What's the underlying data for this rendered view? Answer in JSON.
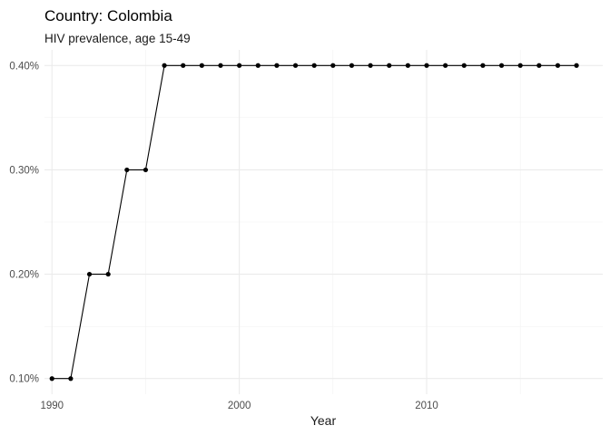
{
  "chart_data": {
    "type": "line",
    "title": "Country: Colombia",
    "subtitle": "HIV prevalence, age 15-49",
    "xlabel": "Year",
    "ylabel": "",
    "x": [
      1990,
      1991,
      1992,
      1993,
      1994,
      1995,
      1996,
      1997,
      1998,
      1999,
      2000,
      2001,
      2002,
      2003,
      2004,
      2005,
      2006,
      2007,
      2008,
      2009,
      2010,
      2011,
      2012,
      2013,
      2014,
      2015,
      2016,
      2017,
      2018
    ],
    "series": [
      {
        "values": [
          0.1,
          0.1,
          0.2,
          0.2,
          0.3,
          0.3,
          0.4,
          0.4,
          0.4,
          0.4,
          0.4,
          0.4,
          0.4,
          0.4,
          0.4,
          0.4,
          0.4,
          0.4,
          0.4,
          0.4,
          0.4,
          0.4,
          0.4,
          0.4,
          0.4,
          0.4,
          0.4,
          0.4,
          0.4
        ],
        "color": "#000000"
      }
    ],
    "x_ticks": [
      1990,
      2000,
      2010
    ],
    "x_tick_labels": [
      "1990",
      "2000",
      "2010"
    ],
    "y_ticks": [
      0.1,
      0.2,
      0.3,
      0.4
    ],
    "y_tick_labels": [
      "0.10%",
      "0.20%",
      "0.30%",
      "0.40%"
    ],
    "xlim": [
      1989.6,
      2019.4
    ],
    "ylim": [
      0.085,
      0.415
    ],
    "grid": true,
    "legend": "none"
  }
}
